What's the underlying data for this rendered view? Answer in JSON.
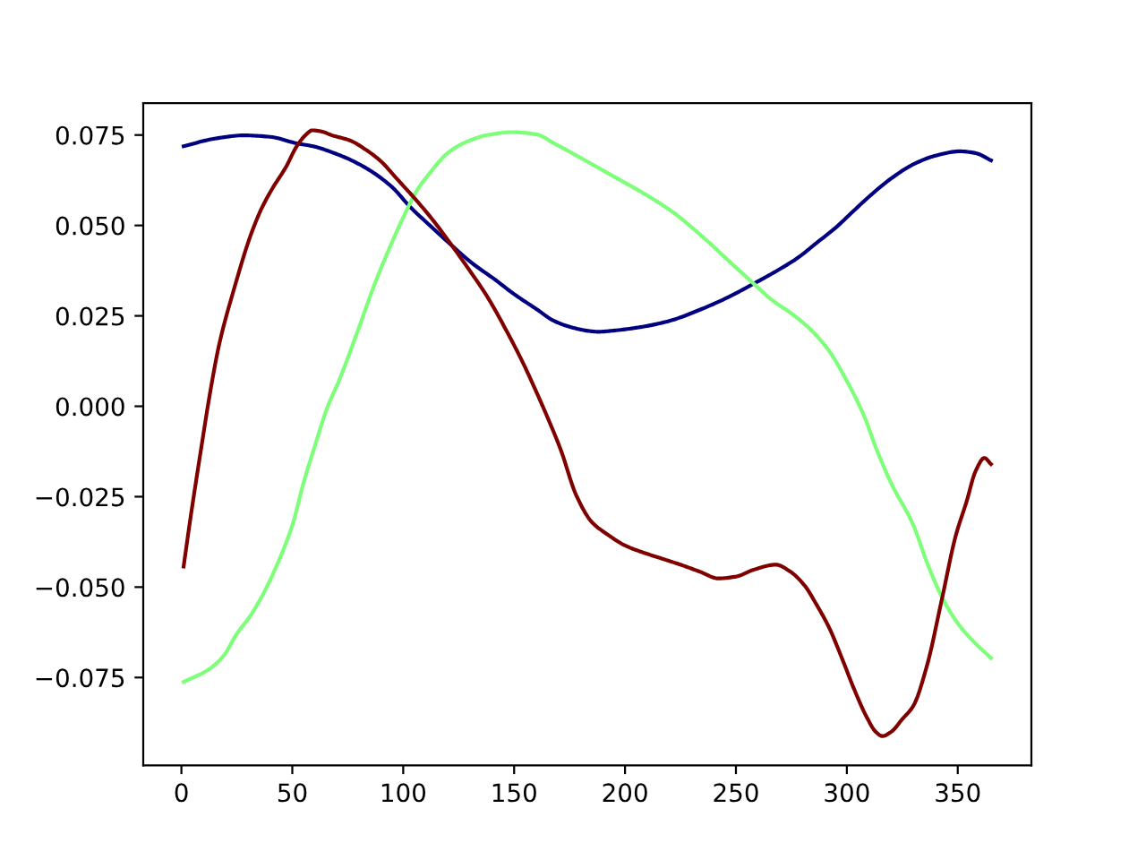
{
  "chart_data": {
    "type": "line",
    "xlim": [
      -17.2,
      383.2
    ],
    "ylim": [
      -0.0993,
      0.0838
    ],
    "xticks": [
      0,
      50,
      100,
      150,
      200,
      250,
      300,
      350
    ],
    "yticks": [
      {
        "value": -0.075,
        "label": "−0.075"
      },
      {
        "value": -0.05,
        "label": "−0.050"
      },
      {
        "value": -0.025,
        "label": "−0.025"
      },
      {
        "value": 0,
        "label": "0.000"
      },
      {
        "value": 0.025,
        "label": "0.025"
      },
      {
        "value": 0.05,
        "label": "0.050"
      },
      {
        "value": 0.075,
        "label": "0.075"
      }
    ],
    "marker": "none",
    "line_style": "solid",
    "series": [
      {
        "color": "#000080",
        "x": [
          1,
          15,
          28,
          40,
          52,
          60,
          68,
          76,
          85,
          95,
          103,
          112,
          122,
          131,
          141,
          150,
          160,
          168,
          176,
          184,
          188,
          196,
          208,
          220,
          235,
          246,
          258,
          268,
          278,
          286,
          295,
          303,
          311,
          320,
          330,
          340,
          351,
          358,
          365
        ],
        "values": [
          0.0719,
          0.074,
          0.0749,
          0.0745,
          0.0727,
          0.0718,
          0.0702,
          0.0682,
          0.0652,
          0.0606,
          0.0552,
          0.05,
          0.0444,
          0.0396,
          0.0352,
          0.031,
          0.0269,
          0.0236,
          0.0218,
          0.0208,
          0.0206,
          0.021,
          0.022,
          0.0236,
          0.027,
          0.03,
          0.0339,
          0.0373,
          0.0411,
          0.045,
          0.0494,
          0.054,
          0.0585,
          0.063,
          0.0669,
          0.0693,
          0.0705,
          0.07,
          0.068
        ]
      },
      {
        "color": "#7dff7a",
        "x": [
          1,
          12,
          19,
          25,
          31,
          36,
          43,
          50,
          55,
          60,
          66,
          71,
          79,
          87,
          94,
          101,
          106,
          112,
          120,
          128,
          138,
          149,
          160,
          168,
          182,
          195,
          208,
          222,
          230,
          238,
          248,
          258,
          266,
          276,
          284,
          292,
          300,
          308,
          313,
          320,
          330,
          336,
          343,
          350,
          357,
          365
        ],
        "values": [
          -0.0762,
          -0.0729,
          -0.069,
          -0.0629,
          -0.058,
          -0.0529,
          -0.044,
          -0.0329,
          -0.0213,
          -0.0113,
          0.0,
          0.007,
          0.02,
          0.0336,
          0.044,
          0.0535,
          0.0595,
          0.0645,
          0.07,
          0.073,
          0.075,
          0.0758,
          0.0752,
          0.0727,
          0.068,
          0.0635,
          0.059,
          0.0535,
          0.0495,
          0.0452,
          0.0395,
          0.0339,
          0.0295,
          0.0252,
          0.021,
          0.0153,
          0.007,
          -0.003,
          -0.0113,
          -0.0213,
          -0.0329,
          -0.043,
          -0.0529,
          -0.06,
          -0.065,
          -0.0696
        ]
      },
      {
        "color": "#800000",
        "x": [
          1,
          4,
          9,
          13,
          17,
          24,
          31,
          36,
          41,
          47,
          52,
          56,
          59,
          63,
          68,
          76,
          83,
          90,
          97,
          106,
          114,
          122,
          130,
          138,
          146,
          154,
          160,
          165,
          171,
          178,
          185,
          192,
          200,
          208,
          216,
          225,
          234,
          242,
          250,
          258,
          268,
          274,
          281,
          286,
          292,
          298,
          303,
          309,
          313,
          316,
          320,
          325,
          330,
          336,
          343,
          349,
          354,
          358,
          362,
          365
        ],
        "values": [
          -0.0443,
          -0.0313,
          -0.0113,
          0.004,
          0.017,
          0.033,
          0.0469,
          0.0545,
          0.0602,
          0.066,
          0.0719,
          0.075,
          0.0763,
          0.076,
          0.0749,
          0.0735,
          0.071,
          0.0677,
          0.063,
          0.0569,
          0.051,
          0.0444,
          0.0375,
          0.0302,
          0.0215,
          0.012,
          0.004,
          -0.003,
          -0.012,
          -0.0246,
          -0.032,
          -0.0354,
          -0.0385,
          -0.0404,
          -0.042,
          -0.0438,
          -0.0458,
          -0.0476,
          -0.0471,
          -0.0452,
          -0.0438,
          -0.0455,
          -0.0496,
          -0.0545,
          -0.0612,
          -0.07,
          -0.0778,
          -0.086,
          -0.09,
          -0.0912,
          -0.09,
          -0.0865,
          -0.0828,
          -0.072,
          -0.0529,
          -0.036,
          -0.0263,
          -0.018,
          -0.0143,
          -0.016
        ]
      }
    ]
  }
}
